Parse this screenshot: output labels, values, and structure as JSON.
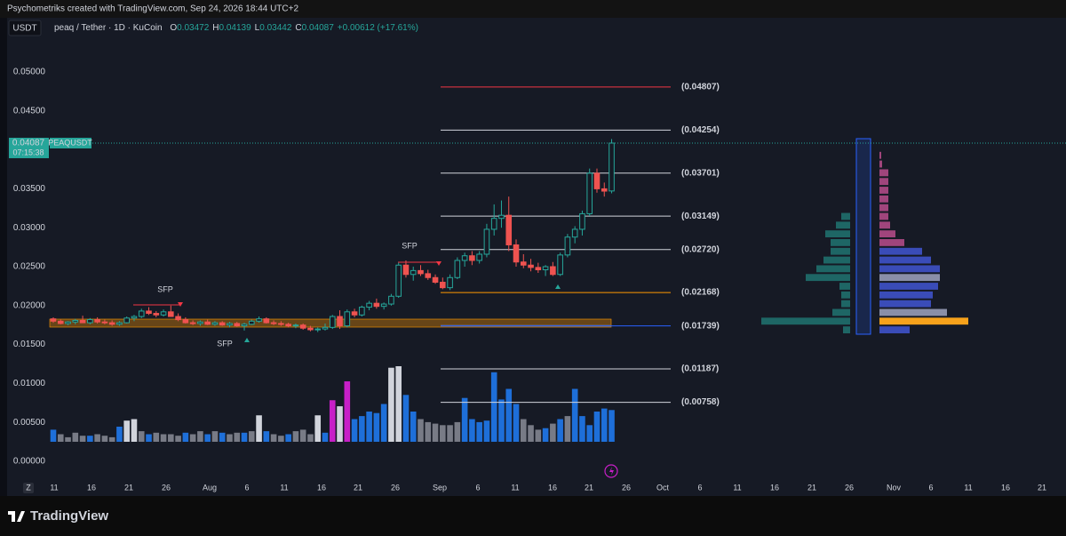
{
  "header": {
    "credit": "Psychometriks created with TradingView.com, Sep 24, 2026 18:44 UTC+2"
  },
  "toolbar": {
    "currency": "USDT",
    "symbol": "peaq / Tether · 1D · KuCoin",
    "ohlc": [
      {
        "key": "O",
        "text": "0.03472"
      },
      {
        "key": "H",
        "text": "0.04139"
      },
      {
        "key": "L",
        "text": "0.03442"
      },
      {
        "key": "C",
        "text": "0.04087"
      }
    ],
    "change": "+0.00612 (+17.61%)"
  },
  "footer": {
    "logo": "TradingView",
    "timezone_button": "Z"
  },
  "chart_data": {
    "type": "candlestick",
    "ylim": [
      -0.00225,
      0.0568
    ],
    "yticks": [
      {
        "value": 0,
        "label": "0.00000"
      },
      {
        "value": 0.005,
        "label": "0.00500"
      },
      {
        "value": 0.01,
        "label": "0.01000"
      },
      {
        "value": 0.015,
        "label": "0.01500"
      },
      {
        "value": 0.02,
        "label": "0.02000"
      },
      {
        "value": 0.025,
        "label": "0.02500"
      },
      {
        "value": 0.03,
        "label": "0.03000"
      },
      {
        "value": 0.035,
        "label": "0.03500"
      },
      {
        "value": 0.04,
        "label": "0.04000"
      },
      {
        "value": 0.045,
        "label": "0.04500"
      },
      {
        "value": 0.05,
        "label": "0.05000"
      }
    ],
    "grid": false,
    "x_axis_labels": [
      "11",
      "16",
      "21",
      "26",
      "Aug",
      "6",
      "11",
      "16",
      "21",
      "26",
      "Sep",
      "6",
      "11",
      "16",
      "21",
      "26",
      "Oct",
      "6",
      "11",
      "16",
      "21",
      "26",
      "Nov",
      "6",
      "11",
      "16",
      "21"
    ],
    "up_color": "#26a69a",
    "down_color": "#ef5350",
    "candles": [
      [
        0.0183,
        0.0185,
        0.0178,
        0.018
      ],
      [
        0.018,
        0.0182,
        0.0176,
        0.0177
      ],
      [
        0.0177,
        0.018,
        0.0175,
        0.0179
      ],
      [
        0.0179,
        0.0183,
        0.0176,
        0.0181
      ],
      [
        0.0181,
        0.0187,
        0.0179,
        0.0178
      ],
      [
        0.0178,
        0.0184,
        0.0176,
        0.0182
      ],
      [
        0.0182,
        0.0185,
        0.0177,
        0.0179
      ],
      [
        0.0179,
        0.0182,
        0.0176,
        0.0178
      ],
      [
        0.0178,
        0.0181,
        0.0174,
        0.0176
      ],
      [
        0.0176,
        0.018,
        0.0174,
        0.0178
      ],
      [
        0.0178,
        0.0186,
        0.0177,
        0.0184
      ],
      [
        0.0184,
        0.0188,
        0.018,
        0.0186
      ],
      [
        0.0186,
        0.0196,
        0.0184,
        0.0193
      ],
      [
        0.0193,
        0.0198,
        0.0188,
        0.019
      ],
      [
        0.019,
        0.0193,
        0.0185,
        0.0188
      ],
      [
        0.0188,
        0.0195,
        0.0186,
        0.0192
      ],
      [
        0.0192,
        0.02,
        0.0188,
        0.0186
      ],
      [
        0.0186,
        0.019,
        0.018,
        0.0182
      ],
      [
        0.0182,
        0.0185,
        0.0177,
        0.0178
      ],
      [
        0.0178,
        0.0181,
        0.0175,
        0.0177
      ],
      [
        0.0177,
        0.0181,
        0.0174,
        0.0179
      ],
      [
        0.0179,
        0.0182,
        0.0175,
        0.0176
      ],
      [
        0.0176,
        0.018,
        0.0174,
        0.0178
      ],
      [
        0.0178,
        0.018,
        0.0174,
        0.0175
      ],
      [
        0.0175,
        0.0179,
        0.0172,
        0.0177
      ],
      [
        0.0177,
        0.0179,
        0.0173,
        0.0174
      ],
      [
        0.0174,
        0.0178,
        0.0168,
        0.0176
      ],
      [
        0.0176,
        0.0182,
        0.0175,
        0.018
      ],
      [
        0.018,
        0.0186,
        0.0178,
        0.0183
      ],
      [
        0.0183,
        0.0185,
        0.0177,
        0.0178
      ],
      [
        0.0178,
        0.0181,
        0.0175,
        0.0177
      ],
      [
        0.0177,
        0.018,
        0.0174,
        0.0176
      ],
      [
        0.0176,
        0.0178,
        0.0172,
        0.0174
      ],
      [
        0.0174,
        0.0177,
        0.0171,
        0.0175
      ],
      [
        0.0175,
        0.0177,
        0.0169,
        0.0171
      ],
      [
        0.0171,
        0.0174,
        0.0167,
        0.0169
      ],
      [
        0.0169,
        0.0172,
        0.0166,
        0.017
      ],
      [
        0.017,
        0.0177,
        0.0168,
        0.0172
      ],
      [
        0.0172,
        0.0188,
        0.017,
        0.0186
      ],
      [
        0.0186,
        0.0194,
        0.017,
        0.0174
      ],
      [
        0.0174,
        0.0195,
        0.0172,
        0.0192
      ],
      [
        0.0192,
        0.0196,
        0.0185,
        0.0188
      ],
      [
        0.0188,
        0.02,
        0.0186,
        0.0198
      ],
      [
        0.0198,
        0.0206,
        0.0194,
        0.0203
      ],
      [
        0.0203,
        0.0209,
        0.0196,
        0.0199
      ],
      [
        0.0199,
        0.0204,
        0.0195,
        0.0202
      ],
      [
        0.0202,
        0.0215,
        0.02,
        0.0212
      ],
      [
        0.0212,
        0.0255,
        0.021,
        0.0252
      ],
      [
        0.0252,
        0.0258,
        0.0236,
        0.024
      ],
      [
        0.024,
        0.025,
        0.0232,
        0.0245
      ],
      [
        0.0245,
        0.0252,
        0.0238,
        0.0241
      ],
      [
        0.0241,
        0.0246,
        0.0233,
        0.0236
      ],
      [
        0.0236,
        0.024,
        0.0228,
        0.023
      ],
      [
        0.023,
        0.0236,
        0.0221,
        0.0223
      ],
      [
        0.0223,
        0.024,
        0.022,
        0.0236
      ],
      [
        0.0236,
        0.0262,
        0.0234,
        0.0258
      ],
      [
        0.0258,
        0.0268,
        0.025,
        0.0264
      ],
      [
        0.0264,
        0.027,
        0.0252,
        0.0258
      ],
      [
        0.0258,
        0.027,
        0.0254,
        0.0266
      ],
      [
        0.0266,
        0.0305,
        0.0262,
        0.0298
      ],
      [
        0.0298,
        0.033,
        0.029,
        0.0312
      ],
      [
        0.0312,
        0.0335,
        0.03,
        0.0316
      ],
      [
        0.0316,
        0.034,
        0.027,
        0.0278
      ],
      [
        0.0278,
        0.0285,
        0.025,
        0.0256
      ],
      [
        0.0256,
        0.0266,
        0.0248,
        0.0252
      ],
      [
        0.0252,
        0.026,
        0.0244,
        0.0249
      ],
      [
        0.0249,
        0.0255,
        0.0242,
        0.0246
      ],
      [
        0.0246,
        0.0252,
        0.0238,
        0.025
      ],
      [
        0.025,
        0.0256,
        0.0238,
        0.024
      ],
      [
        0.024,
        0.0268,
        0.0238,
        0.0265
      ],
      [
        0.0265,
        0.0292,
        0.0262,
        0.0288
      ],
      [
        0.0288,
        0.0302,
        0.028,
        0.0298
      ],
      [
        0.0298,
        0.0322,
        0.029,
        0.0318
      ],
      [
        0.0318,
        0.0376,
        0.0315,
        0.037
      ],
      [
        0.037,
        0.0376,
        0.0345,
        0.035
      ],
      [
        0.035,
        0.0358,
        0.034,
        0.0347
      ],
      [
        0.03472,
        0.04139,
        0.03442,
        0.04087
      ]
    ],
    "volume": [
      16,
      10,
      6,
      12,
      8,
      8,
      10,
      8,
      6,
      20,
      28,
      30,
      14,
      10,
      12,
      10,
      10,
      8,
      12,
      10,
      14,
      10,
      14,
      12,
      10,
      12,
      12,
      14,
      35,
      14,
      10,
      8,
      10,
      14,
      16,
      10,
      35,
      12,
      55,
      47,
      80,
      30,
      34,
      40,
      38,
      50,
      98,
      100,
      62,
      40,
      30,
      26,
      24,
      22,
      22,
      26,
      58,
      30,
      26,
      28,
      92,
      56,
      70,
      50,
      30,
      22,
      16,
      18,
      24,
      30,
      34,
      70,
      34,
      22,
      40,
      44,
      42
    ],
    "volume_palette": [
      "#787b86",
      "#1e6fd9",
      "#d1d4dc",
      "#c71fc7"
    ],
    "volume_colors": [
      1,
      0,
      0,
      0,
      0,
      1,
      0,
      0,
      0,
      1,
      2,
      2,
      0,
      1,
      0,
      0,
      0,
      0,
      1,
      0,
      0,
      1,
      0,
      1,
      0,
      0,
      1,
      0,
      2,
      1,
      0,
      0,
      1,
      0,
      0,
      0,
      2,
      1,
      3,
      2,
      3,
      1,
      1,
      1,
      1,
      1,
      2,
      2,
      1,
      1,
      0,
      0,
      0,
      0,
      0,
      0,
      1,
      1,
      1,
      1,
      1,
      1,
      1,
      1,
      0,
      0,
      0,
      1,
      0,
      1,
      0,
      1,
      1,
      1,
      1,
      1,
      1
    ],
    "levels": [
      {
        "value": 0.04807,
        "label": "(0.04807)",
        "color": "#f23645"
      },
      {
        "value": 0.04254,
        "label": "(0.04254)",
        "color": "#d1d4dc"
      },
      {
        "value": 0.03701,
        "label": "(0.03701)",
        "color": "#d1d4dc"
      },
      {
        "value": 0.03149,
        "label": "(0.03149)",
        "color": "#d1d4dc"
      },
      {
        "value": 0.0272,
        "label": "(0.02720)",
        "color": "#d1d4dc"
      },
      {
        "value": 0.02168,
        "label": "(0.02168)",
        "color": "#ff9800"
      },
      {
        "value": 0.01739,
        "label": "(0.01739)",
        "color": "#2962ff"
      },
      {
        "value": 0.01187,
        "label": "(0.01187)",
        "color": "#d1d4dc"
      },
      {
        "value": 0.00758,
        "label": "(0.00758)",
        "color": "#d1d4dc"
      }
    ],
    "current_price": {
      "value": 0.04087,
      "label": "0.04087",
      "countdown": "07:15:38",
      "symbol": "PEAQUSDT"
    },
    "annotations": [
      "SFP",
      "SFP",
      "SFP"
    ],
    "volume_profile": {
      "left": [
        0,
        0,
        0,
        0,
        0,
        0,
        0,
        0,
        10,
        16,
        28,
        22,
        22,
        30,
        38,
        50,
        12,
        10,
        10,
        20,
        100,
        8
      ],
      "right": [
        0,
        2,
        3,
        10,
        10,
        10,
        10,
        10,
        10,
        12,
        18,
        28,
        48,
        58,
        68,
        68,
        66,
        60,
        58,
        76,
        100,
        34
      ],
      "right_colors": [
        "#a0457c",
        "#a0457c",
        "#a0457c",
        "#a0457c",
        "#a0457c",
        "#a0457c",
        "#a0457c",
        "#a0457c",
        "#a0457c",
        "#a0457c",
        "#a0457c",
        "#a0457c",
        "#3a4cb8",
        "#3a4cb8",
        "#3a4cb8",
        "#8a8fa8",
        "#3a4cb8",
        "#3a4cb8",
        "#3a4cb8",
        "#8a8fa8",
        "#f7a21b",
        "#3a4cb8"
      ]
    }
  }
}
